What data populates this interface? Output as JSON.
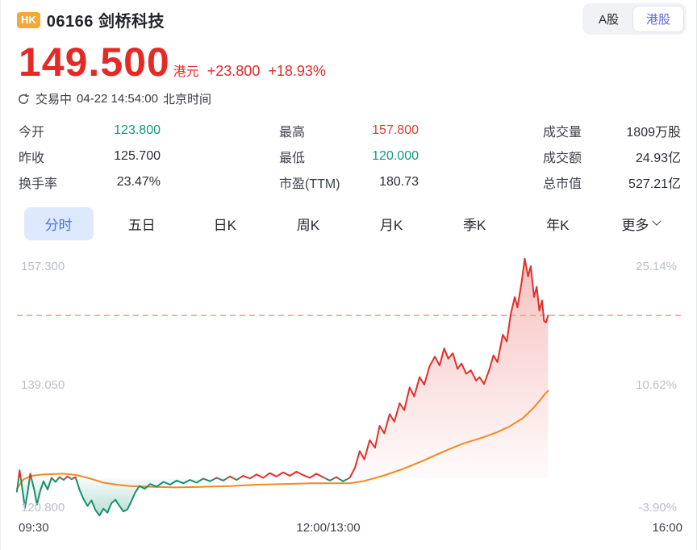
{
  "header": {
    "market_badge": "HK",
    "title": "06166 剑桥科技",
    "market_tabs": [
      {
        "label": "A股",
        "active": false
      },
      {
        "label": "港股",
        "active": true
      }
    ]
  },
  "quote": {
    "price": "149.500",
    "currency": "港元",
    "change": "+23.800",
    "change_pct": "+18.93%",
    "status": "交易中",
    "datetime": "04-22 14:54:00",
    "timezone": "北京时间"
  },
  "stats": {
    "col1": [
      {
        "label": "今开",
        "value": "123.800",
        "tone": "green"
      },
      {
        "label": "昨收",
        "value": "125.700",
        "tone": "normal"
      },
      {
        "label": "换手率",
        "value": "23.47%",
        "tone": "normal"
      }
    ],
    "col2": [
      {
        "label": "最高",
        "value": "157.800",
        "tone": "red"
      },
      {
        "label": "最低",
        "value": "120.000",
        "tone": "green"
      },
      {
        "label": "市盈(TTM)",
        "value": "180.73",
        "tone": "normal"
      }
    ],
    "col3": [
      {
        "label": "成交量",
        "value": "1809万股",
        "tone": "normal"
      },
      {
        "label": "成交额",
        "value": "24.93亿",
        "tone": "normal"
      },
      {
        "label": "总市值",
        "value": "527.21亿",
        "tone": "normal"
      }
    ]
  },
  "period_tabs": {
    "items": [
      {
        "label": "分时",
        "active": true
      },
      {
        "label": "五日",
        "active": false
      },
      {
        "label": "日K",
        "active": false
      },
      {
        "label": "周K",
        "active": false
      },
      {
        "label": "月K",
        "active": false
      },
      {
        "label": "季K",
        "active": false
      },
      {
        "label": "年K",
        "active": false
      },
      {
        "label": "更多",
        "active": false,
        "has_chevron": true
      }
    ]
  },
  "chart_data": {
    "type": "line",
    "title": "分时 intraday price chart",
    "x_axis": {
      "ticks": [
        "09:30",
        "12:00/13:00",
        "16:00"
      ],
      "sessions": "09:30-12:00 / 13:00-16:00"
    },
    "y_axis_left": [
      "157.300",
      "139.050",
      "120.800"
    ],
    "y_axis_right": [
      "25.14%",
      "10.62%",
      "-3.90%"
    ],
    "y_range": [
      120.8,
      157.3
    ],
    "prev_close": 125.7,
    "current_price": 149.5,
    "legend": [
      "price",
      "avg"
    ],
    "colors": {
      "up": "#e0302c",
      "down": "#14906f",
      "avg": "#f2891f",
      "current_dashed": "#f49a92",
      "fill_up": "rgba(226,53,50,0.30)",
      "fill_down": "rgba(20,144,111,0.30)"
    },
    "series": [
      {
        "name": "price",
        "points": [
          [
            0.0,
            123.8
          ],
          [
            0.004,
            126.9
          ],
          [
            0.008,
            124.2
          ],
          [
            0.012,
            121.4
          ],
          [
            0.016,
            123.6
          ],
          [
            0.02,
            126.4
          ],
          [
            0.026,
            124.0
          ],
          [
            0.03,
            121.9
          ],
          [
            0.035,
            123.9
          ],
          [
            0.04,
            125.3
          ],
          [
            0.046,
            124.1
          ],
          [
            0.052,
            125.8
          ],
          [
            0.058,
            125.2
          ],
          [
            0.064,
            125.9
          ],
          [
            0.07,
            125.5
          ],
          [
            0.076,
            126.0
          ],
          [
            0.082,
            125.6
          ],
          [
            0.088,
            125.9
          ],
          [
            0.094,
            124.1
          ],
          [
            0.1,
            122.7
          ],
          [
            0.106,
            121.7
          ],
          [
            0.112,
            122.5
          ],
          [
            0.118,
            121.1
          ],
          [
            0.124,
            120.3
          ],
          [
            0.13,
            121.3
          ],
          [
            0.136,
            120.7
          ],
          [
            0.142,
            122.1
          ],
          [
            0.148,
            122.6
          ],
          [
            0.154,
            121.7
          ],
          [
            0.16,
            120.9
          ],
          [
            0.166,
            121.2
          ],
          [
            0.172,
            122.4
          ],
          [
            0.178,
            123.7
          ],
          [
            0.184,
            124.6
          ],
          [
            0.192,
            124.2
          ],
          [
            0.2,
            124.9
          ],
          [
            0.21,
            124.5
          ],
          [
            0.22,
            125.2
          ],
          [
            0.23,
            124.8
          ],
          [
            0.24,
            125.4
          ],
          [
            0.25,
            125.0
          ],
          [
            0.26,
            125.5
          ],
          [
            0.27,
            125.1
          ],
          [
            0.28,
            125.7
          ],
          [
            0.29,
            125.3
          ],
          [
            0.3,
            125.8
          ],
          [
            0.31,
            125.4
          ],
          [
            0.32,
            126.0
          ],
          [
            0.33,
            125.5
          ],
          [
            0.34,
            126.1
          ],
          [
            0.35,
            125.7
          ],
          [
            0.36,
            126.3
          ],
          [
            0.37,
            125.8
          ],
          [
            0.38,
            126.5
          ],
          [
            0.39,
            126.0
          ],
          [
            0.4,
            126.6
          ],
          [
            0.41,
            126.1
          ],
          [
            0.42,
            126.7
          ],
          [
            0.43,
            126.2
          ],
          [
            0.44,
            125.8
          ],
          [
            0.45,
            126.4
          ],
          [
            0.46,
            125.9
          ],
          [
            0.47,
            125.4
          ],
          [
            0.48,
            125.9
          ],
          [
            0.49,
            125.3
          ],
          [
            0.5,
            125.8
          ],
          [
            0.508,
            127.3
          ],
          [
            0.515,
            129.7
          ],
          [
            0.522,
            128.5
          ],
          [
            0.53,
            131.3
          ],
          [
            0.538,
            130.2
          ],
          [
            0.545,
            133.4
          ],
          [
            0.552,
            132.3
          ],
          [
            0.56,
            135.1
          ],
          [
            0.567,
            134.0
          ],
          [
            0.575,
            136.7
          ],
          [
            0.582,
            135.7
          ],
          [
            0.59,
            139.0
          ],
          [
            0.597,
            137.7
          ],
          [
            0.605,
            140.5
          ],
          [
            0.612,
            139.4
          ],
          [
            0.62,
            142.1
          ],
          [
            0.628,
            143.5
          ],
          [
            0.635,
            142.2
          ],
          [
            0.642,
            144.7
          ],
          [
            0.648,
            143.2
          ],
          [
            0.655,
            144.0
          ],
          [
            0.662,
            141.7
          ],
          [
            0.668,
            142.5
          ],
          [
            0.675,
            141.0
          ],
          [
            0.682,
            141.5
          ],
          [
            0.69,
            140.0
          ],
          [
            0.695,
            140.5
          ],
          [
            0.702,
            139.5
          ],
          [
            0.71,
            141.7
          ],
          [
            0.716,
            143.7
          ],
          [
            0.722,
            142.7
          ],
          [
            0.73,
            146.7
          ],
          [
            0.736,
            145.7
          ],
          [
            0.742,
            149.7
          ],
          [
            0.748,
            152.2
          ],
          [
            0.752,
            150.7
          ],
          [
            0.758,
            154.2
          ],
          [
            0.763,
            157.8
          ],
          [
            0.768,
            155.2
          ],
          [
            0.772,
            156.7
          ],
          [
            0.777,
            152.2
          ],
          [
            0.781,
            153.7
          ],
          [
            0.785,
            150.2
          ],
          [
            0.789,
            151.7
          ],
          [
            0.792,
            148.7
          ],
          [
            0.795,
            148.5
          ],
          [
            0.798,
            149.5
          ]
        ]
      },
      {
        "name": "avg",
        "points": [
          [
            0.0,
            124.2
          ],
          [
            0.01,
            125.6
          ],
          [
            0.022,
            126.1
          ],
          [
            0.04,
            126.3
          ],
          [
            0.07,
            126.4
          ],
          [
            0.09,
            126.2
          ],
          [
            0.11,
            125.7
          ],
          [
            0.13,
            125.1
          ],
          [
            0.15,
            124.8
          ],
          [
            0.17,
            124.6
          ],
          [
            0.2,
            124.5
          ],
          [
            0.24,
            124.4
          ],
          [
            0.28,
            124.5
          ],
          [
            0.32,
            124.6
          ],
          [
            0.36,
            124.8
          ],
          [
            0.4,
            124.9
          ],
          [
            0.44,
            125.0
          ],
          [
            0.48,
            125.0
          ],
          [
            0.5,
            125.0
          ],
          [
            0.52,
            125.3
          ],
          [
            0.55,
            126.1
          ],
          [
            0.58,
            127.1
          ],
          [
            0.61,
            128.3
          ],
          [
            0.64,
            129.6
          ],
          [
            0.67,
            130.8
          ],
          [
            0.7,
            131.7
          ],
          [
            0.72,
            132.4
          ],
          [
            0.74,
            133.3
          ],
          [
            0.76,
            134.5
          ],
          [
            0.775,
            135.9
          ],
          [
            0.785,
            137.0
          ],
          [
            0.793,
            138.0
          ],
          [
            0.798,
            138.5
          ]
        ]
      }
    ]
  }
}
